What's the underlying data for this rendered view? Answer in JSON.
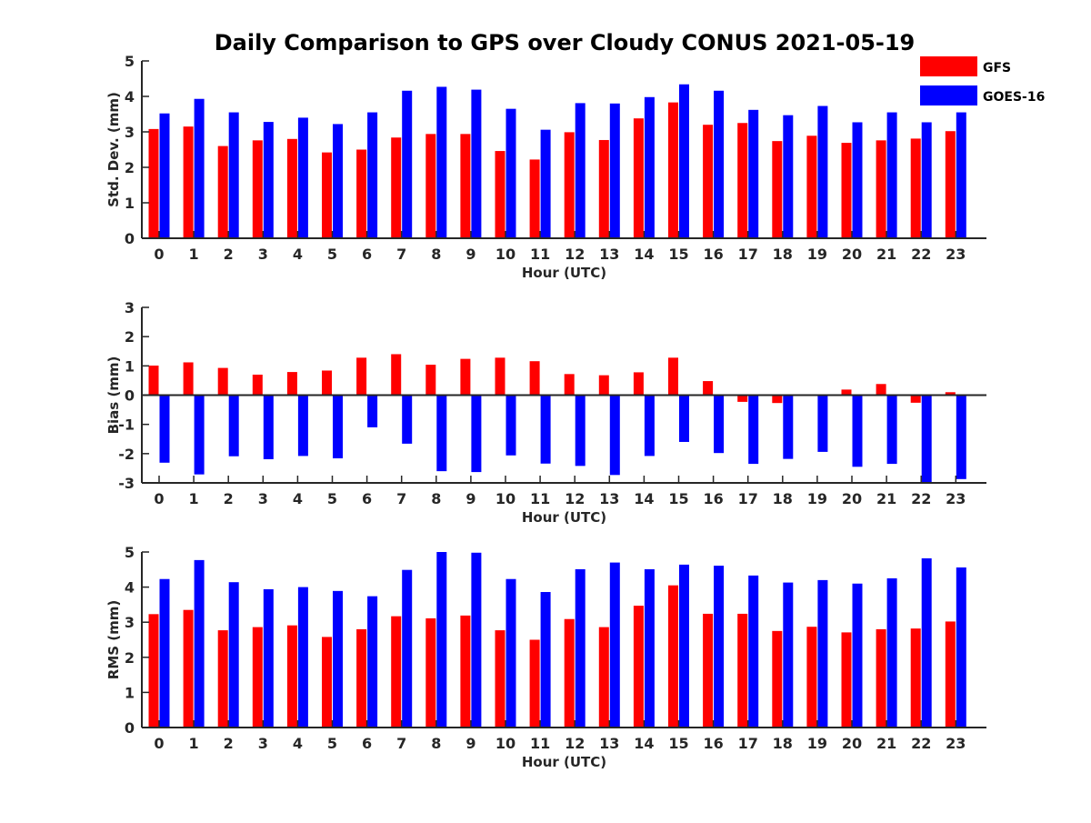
{
  "title": "Daily Comparison to GPS over Cloudy CONUS 2021-05-19",
  "legend": {
    "placement": "top-right",
    "entries": [
      {
        "name": "GFS",
        "color": "#ff0000"
      },
      {
        "name": "GOES-16",
        "color": "#0000ff"
      }
    ]
  },
  "chart_data": [
    {
      "type": "bar",
      "ylabel": "Std. Dev. (mm)",
      "xlabel": "Hour (UTC)",
      "categories": [
        "0",
        "1",
        "2",
        "3",
        "4",
        "5",
        "6",
        "7",
        "8",
        "9",
        "10",
        "11",
        "12",
        "13",
        "14",
        "15",
        "16",
        "17",
        "18",
        "19",
        "20",
        "21",
        "22",
        "23"
      ],
      "ylim": [
        0,
        5
      ],
      "yticks": [
        0,
        1,
        2,
        3,
        4,
        5
      ],
      "series": [
        {
          "name": "GFS",
          "color": "#ff0000",
          "values": [
            3.08,
            3.15,
            2.6,
            2.76,
            2.8,
            2.42,
            2.5,
            2.84,
            2.94,
            2.94,
            2.46,
            2.22,
            2.99,
            2.77,
            3.38,
            3.83,
            3.2,
            3.25,
            2.74,
            2.89,
            2.69,
            2.76,
            2.81,
            3.02
          ]
        },
        {
          "name": "GOES-16",
          "color": "#0000ff",
          "values": [
            3.52,
            3.93,
            3.55,
            3.28,
            3.4,
            3.22,
            3.55,
            4.16,
            4.27,
            4.19,
            3.65,
            3.06,
            3.81,
            3.8,
            3.98,
            4.34,
            4.16,
            3.62,
            3.47,
            3.73,
            3.27,
            3.55,
            3.27,
            3.55
          ]
        }
      ]
    },
    {
      "type": "bar",
      "ylabel": "Bias (mm)",
      "xlabel": "Hour (UTC)",
      "categories": [
        "0",
        "1",
        "2",
        "3",
        "4",
        "5",
        "6",
        "7",
        "8",
        "9",
        "10",
        "11",
        "12",
        "13",
        "14",
        "15",
        "16",
        "17",
        "18",
        "19",
        "20",
        "21",
        "22",
        "23"
      ],
      "ylim": [
        -3,
        3
      ],
      "yticks": [
        -3,
        -2,
        -1,
        0,
        1,
        2,
        3
      ],
      "series": [
        {
          "name": "GFS",
          "color": "#ff0000",
          "values": [
            1.01,
            1.12,
            0.93,
            0.7,
            0.79,
            0.84,
            1.28,
            1.4,
            1.04,
            1.24,
            1.28,
            1.16,
            0.72,
            0.68,
            0.78,
            1.28,
            0.48,
            -0.23,
            -0.27,
            0.03,
            0.19,
            0.38,
            -0.26,
            0.1
          ]
        },
        {
          "name": "GOES-16",
          "color": "#0000ff",
          "values": [
            -2.31,
            -2.71,
            -2.09,
            -2.19,
            -2.08,
            -2.16,
            -1.1,
            -1.66,
            -2.6,
            -2.63,
            -2.06,
            -2.34,
            -2.42,
            -2.73,
            -2.08,
            -1.6,
            -1.98,
            -2.35,
            -2.18,
            -1.94,
            -2.45,
            -2.35,
            -3.0,
            -2.87
          ]
        }
      ]
    },
    {
      "type": "bar",
      "ylabel": "RMS (mm)",
      "xlabel": "Hour (UTC)",
      "categories": [
        "0",
        "1",
        "2",
        "3",
        "4",
        "5",
        "6",
        "7",
        "8",
        "9",
        "10",
        "11",
        "12",
        "13",
        "14",
        "15",
        "16",
        "17",
        "18",
        "19",
        "20",
        "21",
        "22",
        "23"
      ],
      "ylim": [
        0,
        5
      ],
      "yticks": [
        0,
        1,
        2,
        3,
        4,
        5
      ],
      "series": [
        {
          "name": "GFS",
          "color": "#ff0000",
          "values": [
            3.23,
            3.35,
            2.77,
            2.86,
            2.91,
            2.58,
            2.8,
            3.17,
            3.11,
            3.19,
            2.77,
            2.5,
            3.09,
            2.86,
            3.47,
            4.05,
            3.24,
            3.24,
            2.75,
            2.87,
            2.71,
            2.8,
            2.82,
            3.02
          ]
        },
        {
          "name": "GOES-16",
          "color": "#0000ff",
          "values": [
            4.23,
            4.77,
            4.14,
            3.94,
            4.0,
            3.89,
            3.74,
            4.49,
            5.0,
            4.98,
            4.23,
            3.86,
            4.51,
            4.7,
            4.51,
            4.64,
            4.61,
            4.33,
            4.13,
            4.2,
            4.1,
            4.25,
            4.82,
            4.56
          ]
        }
      ]
    }
  ]
}
